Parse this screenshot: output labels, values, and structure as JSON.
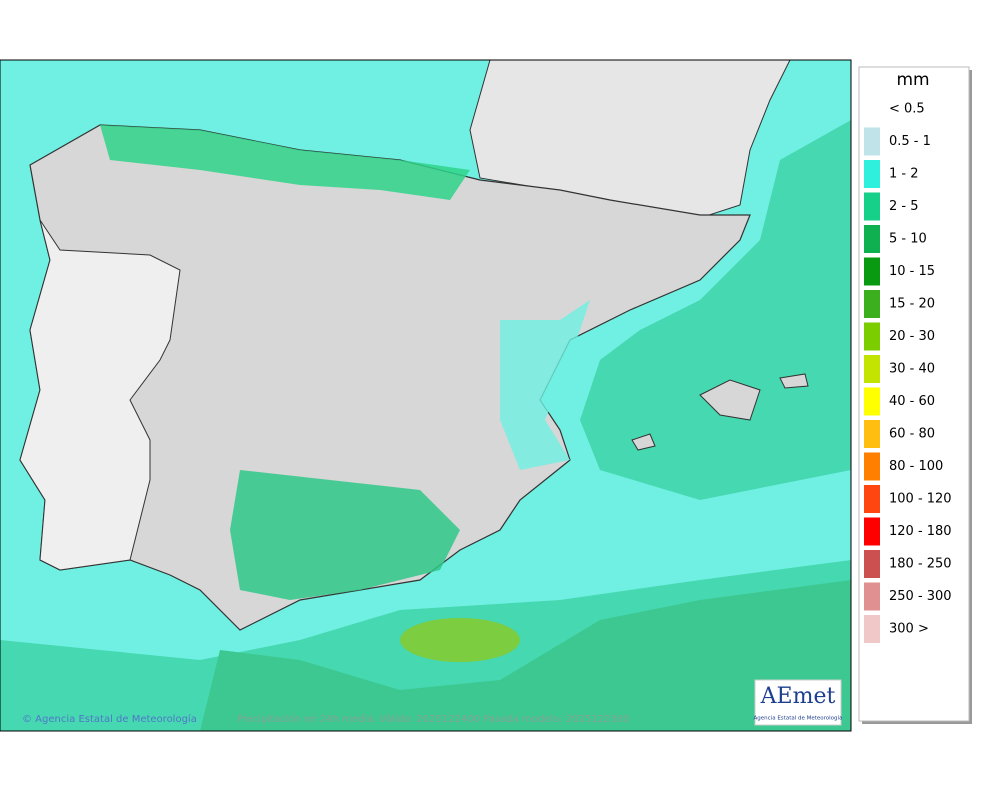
{
  "legend": {
    "title": "mm",
    "items": [
      {
        "label": "< 0.5"
      },
      {
        "label": "0.5 - 1",
        "color": "#bfe3e8"
      },
      {
        "label": "1 - 2",
        "color": "#2ff0dc"
      },
      {
        "label": "2 - 5",
        "color": "#16cf88"
      },
      {
        "label": "5 - 10",
        "color": "#0fb050"
      },
      {
        "label": "10 - 15",
        "color": "#0a9a12"
      },
      {
        "label": "15 - 20",
        "color": "#3caf1e"
      },
      {
        "label": "20 - 30",
        "color": "#7ccd00"
      },
      {
        "label": "30 - 40",
        "color": "#c3e400"
      },
      {
        "label": "40 - 60",
        "color": "#ffff00"
      },
      {
        "label": "60 - 80",
        "color": "#ffbe10"
      },
      {
        "label": "80 - 100",
        "color": "#ff8000"
      },
      {
        "label": "100 - 120",
        "color": "#ff4510"
      },
      {
        "label": "120 - 180",
        "color": "#ff0000"
      },
      {
        "label": "180 - 250",
        "color": "#cc5050"
      },
      {
        "label": "250 - 300",
        "color": "#e09090"
      },
      {
        "label": "300 >",
        "color": "#f0c8c8"
      }
    ]
  },
  "footer": {
    "credit": "© Agencia Estatal de Meteorología",
    "caption": "Precipitación en 24h media. Válido: 2025122400 Pasada modelo: 2025122300"
  },
  "logo": {
    "name": "AEmet",
    "subtitle": "Agencia Estatal de Meteorología"
  }
}
